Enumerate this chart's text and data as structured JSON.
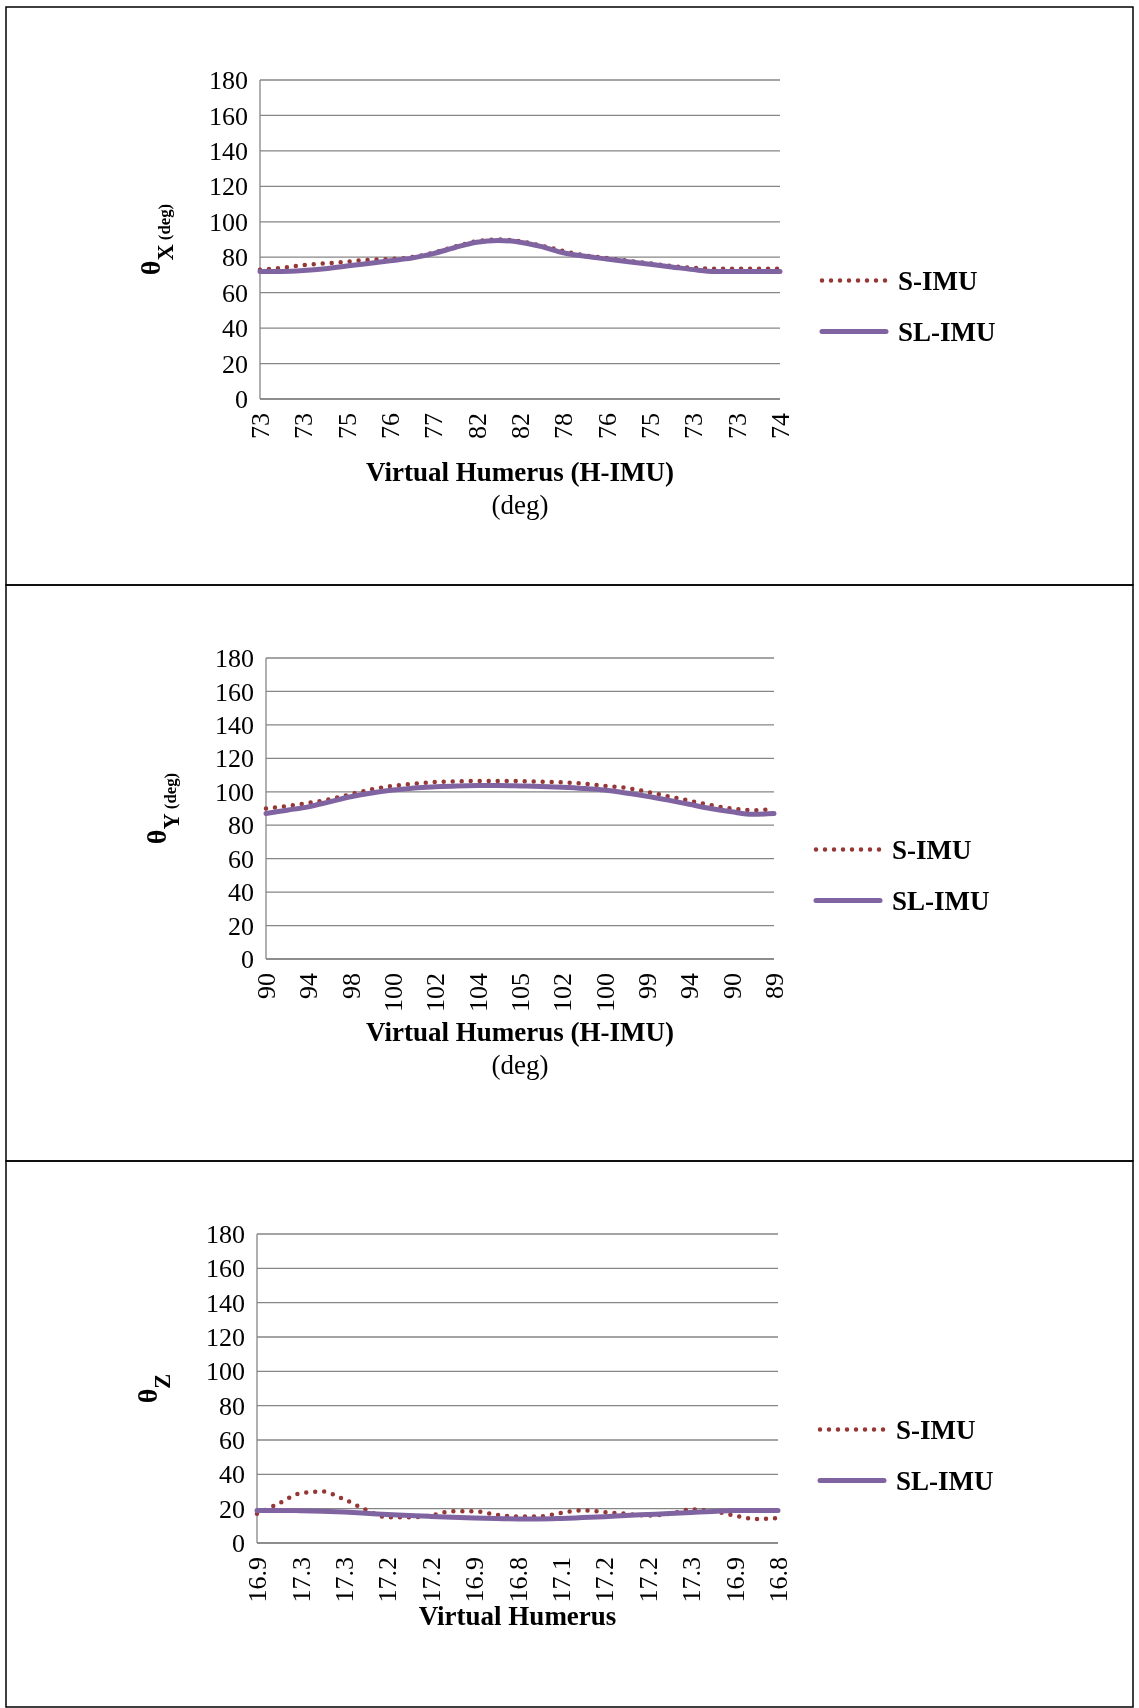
{
  "chart_data": [
    {
      "type": "line",
      "ylabel": "θ$_{X (deg)}$",
      "xlabel": "Virtual Humerus (H-IMU)\n(deg)",
      "ylim": [
        0,
        180
      ],
      "yticks": [
        0,
        20,
        40,
        60,
        80,
        100,
        120,
        140,
        160,
        180
      ],
      "grid": "y",
      "legend": "right",
      "categories": [
        "73",
        null,
        "73",
        null,
        "75",
        null,
        "76",
        null,
        "77",
        null,
        "82",
        null,
        "82",
        null,
        "78",
        null,
        "76",
        null,
        "75",
        null,
        "73",
        null,
        "73",
        null,
        "74"
      ],
      "series": [
        {
          "name": "S-IMU",
          "color": "#953735",
          "line_style": "dotted",
          "values": [
            73,
            74,
            75.5,
            76.5,
            77.5,
            78.5,
            79,
            80,
            82.5,
            86,
            89,
            90,
            89,
            86.5,
            83.5,
            81,
            79.5,
            78,
            76.5,
            75,
            74,
            73.5,
            73.5,
            73.5,
            73.5
          ]
        },
        {
          "name": "SL-IMU",
          "color": "#8064a2",
          "line_style": "solid",
          "values": [
            72,
            72,
            72.5,
            73.5,
            75,
            76.5,
            78,
            79.5,
            82,
            85.5,
            88.5,
            89.5,
            88.5,
            86,
            82.5,
            80.5,
            79,
            77.5,
            76,
            74.5,
            73,
            72,
            72,
            72,
            72
          ]
        }
      ]
    },
    {
      "type": "line",
      "ylabel": "θ$_{Y (deg)}$",
      "xlabel": "Virtual Humerus (H-IMU)\n(deg)",
      "ylim": [
        0,
        180
      ],
      "yticks": [
        0,
        20,
        40,
        60,
        80,
        100,
        120,
        140,
        160,
        180
      ],
      "grid": "y",
      "legend": "right",
      "categories": [
        "90",
        null,
        "94",
        null,
        "98",
        null,
        "100",
        null,
        "102",
        null,
        "104",
        null,
        "105",
        null,
        "102",
        null,
        "100",
        null,
        "99",
        null,
        "94",
        null,
        "90",
        null,
        "89"
      ],
      "series": [
        {
          "name": "S-IMU",
          "color": "#953735",
          "line_style": "dotted",
          "values": [
            90,
            91.5,
            93.3,
            95.5,
            98.5,
            101.5,
            103.5,
            104.8,
            105.8,
            106.2,
            106.4,
            106.4,
            106.4,
            106,
            105.6,
            104.8,
            103.5,
            102.3,
            100,
            97.3,
            94.7,
            92,
            90,
            89,
            89.5
          ]
        },
        {
          "name": "SL-IMU",
          "color": "#8064a2",
          "line_style": "solid",
          "values": [
            87,
            89,
            91,
            94,
            97,
            99.3,
            101,
            102.3,
            103,
            103.5,
            103.7,
            103.7,
            103.5,
            103.2,
            102.7,
            102,
            101,
            99.3,
            97.3,
            95,
            92.5,
            90,
            88,
            86.5,
            87
          ]
        }
      ]
    },
    {
      "type": "line",
      "ylabel": "θ$_{Z}$",
      "xlabel": "Virtual Humerus",
      "ylim": [
        0,
        180
      ],
      "yticks": [
        0,
        20,
        40,
        60,
        80,
        100,
        120,
        140,
        160,
        180
      ],
      "grid": "y",
      "legend": "right",
      "categories": [
        "16.9",
        null,
        "17.3",
        null,
        "17.3",
        null,
        "17.2",
        null,
        "17.2",
        null,
        "16.9",
        null,
        "16.8",
        null,
        "17.1",
        null,
        "17.2",
        null,
        "17.2",
        null,
        "17.3",
        null,
        "16.9",
        null,
        "16.8"
      ],
      "series": [
        {
          "name": "S-IMU",
          "color": "#953735",
          "line_style": "dotted",
          "values": [
            17,
            23,
            29,
            30,
            25.5,
            19.5,
            15,
            15,
            16,
            18.5,
            18.5,
            16.5,
            15.5,
            15.5,
            17.5,
            19,
            18,
            17,
            16,
            17,
            19.5,
            18.5,
            16,
            14,
            14.5
          ]
        },
        {
          "name": "SL-IMU",
          "color": "#8064a2",
          "line_style": "solid",
          "values": [
            19,
            19,
            18.8,
            18.5,
            18,
            17.3,
            16.6,
            16,
            15.5,
            15,
            14.6,
            14.3,
            14,
            14,
            14.3,
            14.8,
            15.3,
            16,
            16.6,
            17.2,
            17.8,
            18.4,
            19,
            19,
            19
          ]
        }
      ]
    }
  ]
}
